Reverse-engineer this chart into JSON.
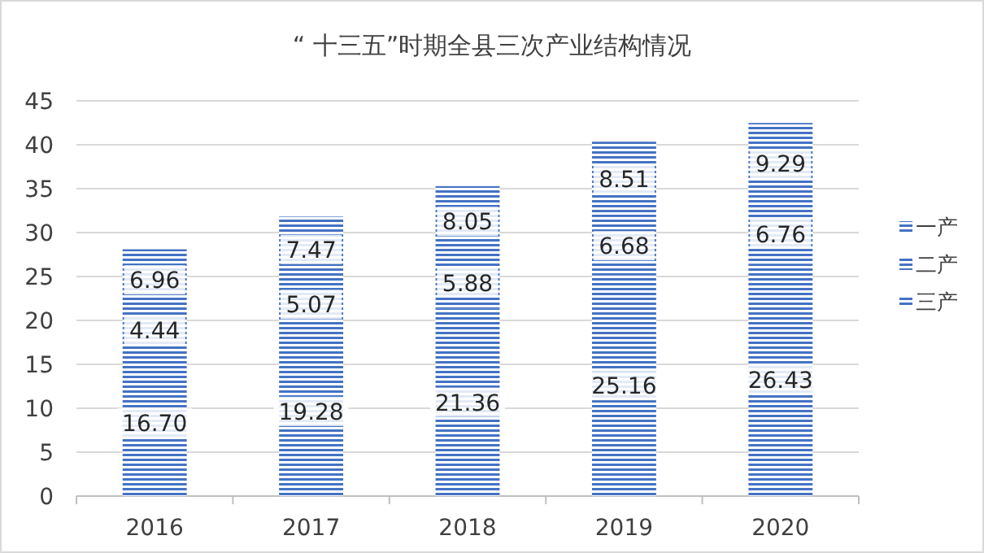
{
  "chart_data": {
    "type": "bar",
    "title": "“ 十三五”时期全县三次产业结构情况",
    "stacked": true,
    "categories": [
      "2016",
      "2017",
      "2018",
      "2019",
      "2020"
    ],
    "series": [
      {
        "name": "三产",
        "color": "#4472c4",
        "values": [
          16.7,
          19.28,
          21.36,
          25.16,
          26.43
        ],
        "value_labels": [
          "16.70",
          "19.28",
          "21.36",
          "25.16",
          "26.43"
        ]
      },
      {
        "name": "二产",
        "color": "#4472c4",
        "values": [
          4.44,
          5.07,
          5.88,
          6.68,
          6.76
        ],
        "value_labels": [
          "4.44",
          "5.07",
          "5.88",
          "6.68",
          "6.76"
        ]
      },
      {
        "name": "一产",
        "color": "#4472c4",
        "values": [
          6.96,
          7.47,
          8.05,
          8.51,
          9.29
        ],
        "value_labels": [
          "6.96",
          "7.47",
          "8.05",
          "8.51",
          "9.29"
        ]
      }
    ],
    "ylim": [
      0,
      45
    ],
    "yticks": [
      0,
      5,
      10,
      15,
      20,
      25,
      30,
      35,
      40,
      45
    ],
    "grid": "y",
    "legend": "right"
  }
}
